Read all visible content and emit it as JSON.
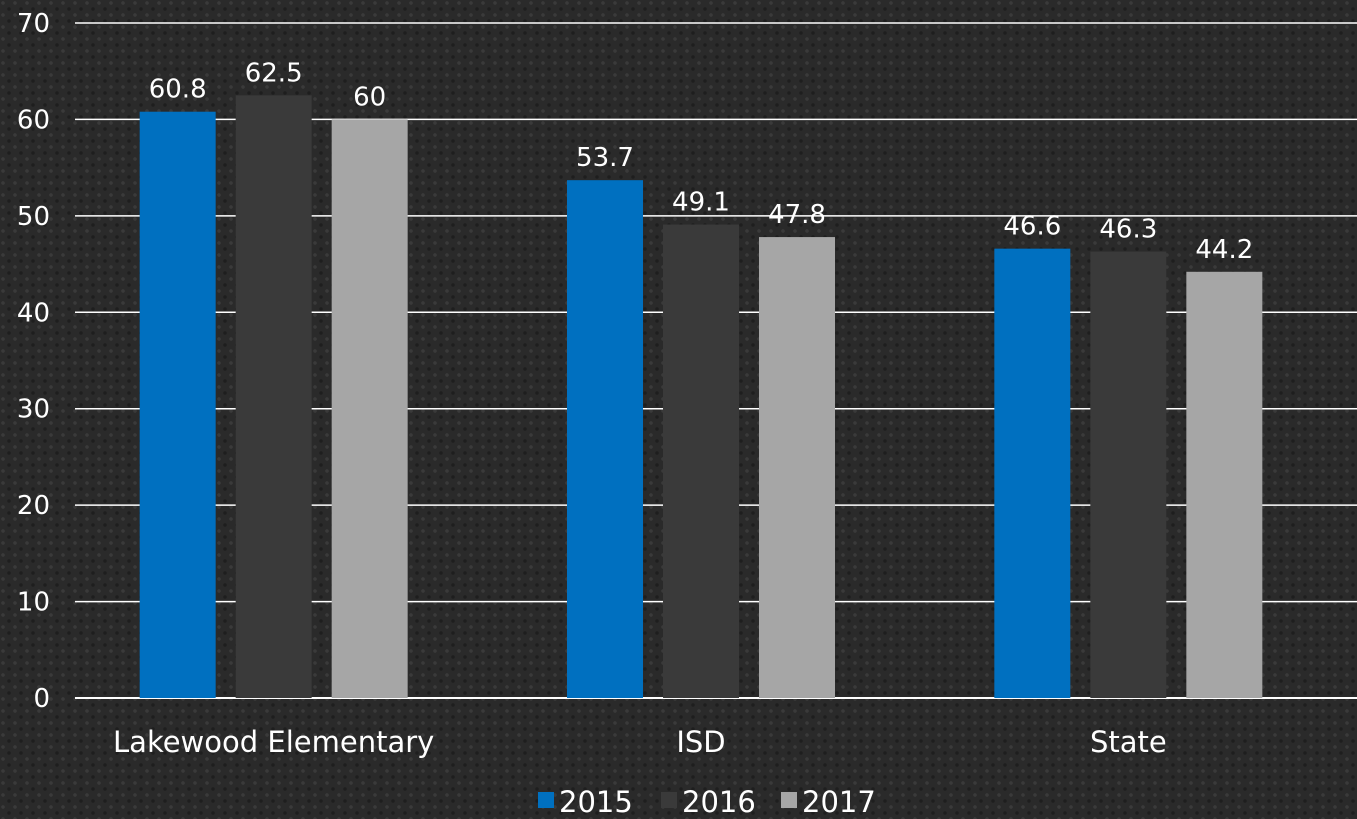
{
  "chart_data": {
    "type": "bar",
    "categories": [
      "Lakewood Elementary",
      "ISD",
      "State"
    ],
    "series": [
      {
        "name": "2015",
        "values": [
          60.8,
          53.7,
          46.6
        ],
        "color": "#0070c0"
      },
      {
        "name": "2016",
        "values": [
          62.5,
          49.1,
          46.3
        ],
        "color": "#3a3a3a"
      },
      {
        "name": "2017",
        "values": [
          60,
          47.8,
          44.2
        ],
        "color": "#a6a6a6"
      }
    ],
    "ylim": [
      0,
      70
    ],
    "yticks": [
      0,
      10,
      20,
      30,
      40,
      50,
      60,
      70
    ],
    "grid": true,
    "legend": "bottom",
    "data_labels": true
  }
}
